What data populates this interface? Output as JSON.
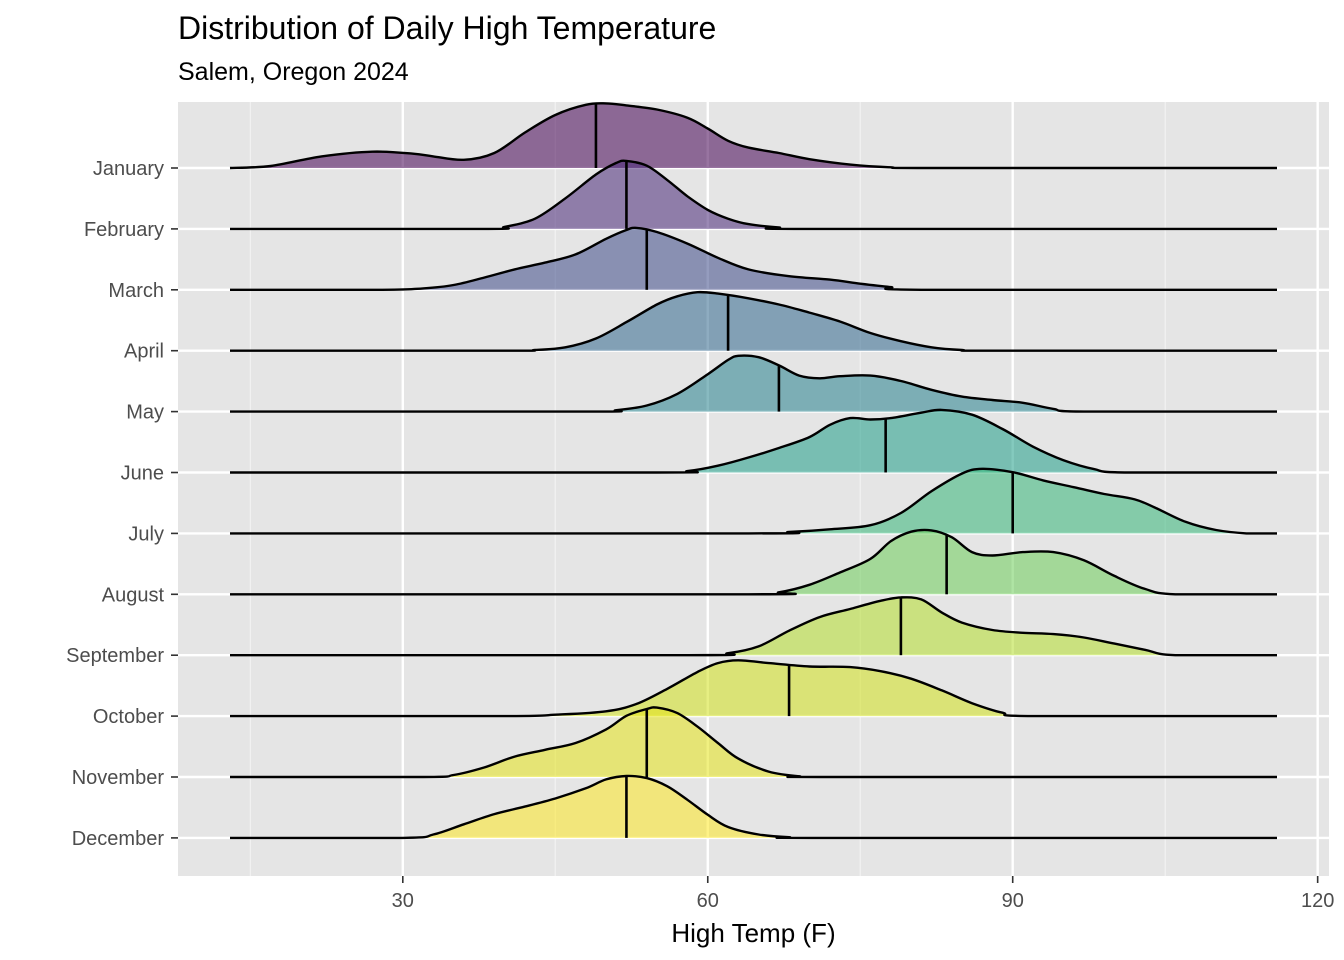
{
  "chart_data": {
    "type": "ridgeline",
    "title": "Distribution of Daily High Temperature",
    "subtitle": "Salem, Oregon 2024",
    "xlabel": "High Temp (F)",
    "ylabel": "",
    "xlim": [
      13,
      116
    ],
    "xticks": [
      30,
      60,
      90,
      120
    ],
    "grid": true,
    "legend": "none",
    "colormap": "viridis",
    "categories": [
      "January",
      "February",
      "March",
      "April",
      "May",
      "June",
      "July",
      "August",
      "September",
      "October",
      "November",
      "December"
    ],
    "series": [
      {
        "name": "January",
        "median": 49,
        "color": "#440154",
        "density": [
          [
            13,
            0
          ],
          [
            17,
            0.03
          ],
          [
            22,
            0.17
          ],
          [
            27,
            0.24
          ],
          [
            31,
            0.21
          ],
          [
            33,
            0.17
          ],
          [
            36,
            0.12
          ],
          [
            39,
            0.22
          ],
          [
            42,
            0.52
          ],
          [
            45,
            0.78
          ],
          [
            48,
            0.93
          ],
          [
            50,
            0.95
          ],
          [
            52,
            0.92
          ],
          [
            55,
            0.86
          ],
          [
            58,
            0.74
          ],
          [
            60,
            0.58
          ],
          [
            62,
            0.4
          ],
          [
            64,
            0.3
          ],
          [
            67,
            0.22
          ],
          [
            70,
            0.13
          ],
          [
            74,
            0.05
          ],
          [
            78,
            0.01
          ],
          [
            82,
            0
          ],
          [
            116,
            0
          ]
        ]
      },
      {
        "name": "February",
        "median": 52,
        "color": "#482878",
        "density": [
          [
            13,
            0
          ],
          [
            38,
            0
          ],
          [
            40,
            0.03
          ],
          [
            43,
            0.15
          ],
          [
            46,
            0.45
          ],
          [
            49,
            0.8
          ],
          [
            51,
            0.97
          ],
          [
            52,
            1.0
          ],
          [
            54,
            0.93
          ],
          [
            56,
            0.72
          ],
          [
            58,
            0.48
          ],
          [
            60,
            0.28
          ],
          [
            62,
            0.15
          ],
          [
            64,
            0.07
          ],
          [
            67,
            0.02
          ],
          [
            70,
            0
          ],
          [
            116,
            0
          ]
        ]
      },
      {
        "name": "March",
        "median": 54,
        "color": "#3E4A89",
        "density": [
          [
            13,
            0
          ],
          [
            28,
            0
          ],
          [
            32,
            0.02
          ],
          [
            35,
            0.07
          ],
          [
            38,
            0.18
          ],
          [
            41,
            0.3
          ],
          [
            44,
            0.4
          ],
          [
            47,
            0.52
          ],
          [
            50,
            0.75
          ],
          [
            52,
            0.88
          ],
          [
            53,
            0.91
          ],
          [
            55,
            0.85
          ],
          [
            58,
            0.68
          ],
          [
            61,
            0.47
          ],
          [
            64,
            0.3
          ],
          [
            68,
            0.2
          ],
          [
            72,
            0.15
          ],
          [
            75,
            0.09
          ],
          [
            78,
            0.04
          ],
          [
            81,
            0
          ],
          [
            116,
            0
          ]
        ]
      },
      {
        "name": "April",
        "median": 62,
        "color": "#31688E",
        "density": [
          [
            13,
            0
          ],
          [
            40,
            0
          ],
          [
            43,
            0.01
          ],
          [
            46,
            0.05
          ],
          [
            49,
            0.18
          ],
          [
            52,
            0.42
          ],
          [
            55,
            0.68
          ],
          [
            57,
            0.8
          ],
          [
            59,
            0.86
          ],
          [
            61,
            0.84
          ],
          [
            64,
            0.77
          ],
          [
            67,
            0.68
          ],
          [
            70,
            0.56
          ],
          [
            73,
            0.43
          ],
          [
            76,
            0.26
          ],
          [
            79,
            0.14
          ],
          [
            82,
            0.05
          ],
          [
            85,
            0.01
          ],
          [
            88,
            0
          ],
          [
            116,
            0
          ]
        ]
      },
      {
        "name": "May",
        "median": 67,
        "color": "#26828E",
        "density": [
          [
            13,
            0
          ],
          [
            48,
            0
          ],
          [
            51,
            0.02
          ],
          [
            54,
            0.09
          ],
          [
            57,
            0.26
          ],
          [
            60,
            0.55
          ],
          [
            62,
            0.76
          ],
          [
            63,
            0.82
          ],
          [
            65,
            0.8
          ],
          [
            67,
            0.68
          ],
          [
            69,
            0.53
          ],
          [
            71,
            0.49
          ],
          [
            73,
            0.52
          ],
          [
            76,
            0.53
          ],
          [
            79,
            0.45
          ],
          [
            82,
            0.32
          ],
          [
            85,
            0.22
          ],
          [
            88,
            0.17
          ],
          [
            91,
            0.13
          ],
          [
            94,
            0.04
          ],
          [
            97,
            0
          ],
          [
            116,
            0
          ]
        ]
      },
      {
        "name": "June",
        "median": 77.5,
        "color": "#1F9E89",
        "density": [
          [
            13,
            0
          ],
          [
            55,
            0
          ],
          [
            58,
            0.02
          ],
          [
            61,
            0.1
          ],
          [
            64,
            0.22
          ],
          [
            67,
            0.36
          ],
          [
            70,
            0.52
          ],
          [
            72,
            0.7
          ],
          [
            74,
            0.8
          ],
          [
            76,
            0.78
          ],
          [
            78,
            0.8
          ],
          [
            81,
            0.88
          ],
          [
            83,
            0.92
          ],
          [
            86,
            0.85
          ],
          [
            89,
            0.64
          ],
          [
            92,
            0.38
          ],
          [
            95,
            0.18
          ],
          [
            98,
            0.05
          ],
          [
            101,
            0
          ],
          [
            116,
            0
          ]
        ]
      },
      {
        "name": "July",
        "median": 90,
        "color": "#35B779",
        "density": [
          [
            13,
            0
          ],
          [
            64,
            0
          ],
          [
            68,
            0.02
          ],
          [
            72,
            0.06
          ],
          [
            76,
            0.12
          ],
          [
            79,
            0.3
          ],
          [
            82,
            0.62
          ],
          [
            85,
            0.88
          ],
          [
            87,
            0.95
          ],
          [
            90,
            0.9
          ],
          [
            93,
            0.78
          ],
          [
            96,
            0.68
          ],
          [
            99,
            0.58
          ],
          [
            102,
            0.5
          ],
          [
            104,
            0.38
          ],
          [
            107,
            0.17
          ],
          [
            110,
            0.05
          ],
          [
            113,
            0
          ],
          [
            116,
            0
          ]
        ]
      },
      {
        "name": "August",
        "median": 83.5,
        "color": "#6DCD59",
        "density": [
          [
            13,
            0
          ],
          [
            64,
            0
          ],
          [
            67,
            0.03
          ],
          [
            70,
            0.14
          ],
          [
            73,
            0.32
          ],
          [
            76,
            0.52
          ],
          [
            78,
            0.78
          ],
          [
            80,
            0.92
          ],
          [
            82,
            0.94
          ],
          [
            84,
            0.84
          ],
          [
            86,
            0.62
          ],
          [
            88,
            0.57
          ],
          [
            91,
            0.62
          ],
          [
            94,
            0.62
          ],
          [
            97,
            0.5
          ],
          [
            100,
            0.27
          ],
          [
            103,
            0.08
          ],
          [
            106,
            0
          ],
          [
            116,
            0
          ]
        ]
      },
      {
        "name": "September",
        "median": 79,
        "color": "#B4DE2C",
        "density": [
          [
            13,
            0
          ],
          [
            58,
            0
          ],
          [
            62,
            0.03
          ],
          [
            65,
            0.13
          ],
          [
            68,
            0.36
          ],
          [
            71,
            0.56
          ],
          [
            74,
            0.68
          ],
          [
            77,
            0.8
          ],
          [
            79,
            0.85
          ],
          [
            81,
            0.82
          ],
          [
            83,
            0.63
          ],
          [
            85,
            0.48
          ],
          [
            88,
            0.37
          ],
          [
            91,
            0.33
          ],
          [
            94,
            0.31
          ],
          [
            97,
            0.26
          ],
          [
            100,
            0.17
          ],
          [
            103,
            0.08
          ],
          [
            106,
            0
          ],
          [
            116,
            0
          ]
        ]
      },
      {
        "name": "October",
        "median": 68,
        "color": "#D2E21B",
        "density": [
          [
            13,
            0
          ],
          [
            40,
            0
          ],
          [
            45,
            0.02
          ],
          [
            50,
            0.07
          ],
          [
            53,
            0.18
          ],
          [
            56,
            0.4
          ],
          [
            59,
            0.65
          ],
          [
            61,
            0.78
          ],
          [
            63,
            0.82
          ],
          [
            66,
            0.78
          ],
          [
            70,
            0.73
          ],
          [
            74,
            0.72
          ],
          [
            77,
            0.66
          ],
          [
            80,
            0.55
          ],
          [
            83,
            0.38
          ],
          [
            86,
            0.19
          ],
          [
            89,
            0.05
          ],
          [
            92,
            0
          ],
          [
            116,
            0
          ]
        ]
      },
      {
        "name": "November",
        "median": 54,
        "color": "#E6E419",
        "density": [
          [
            13,
            0
          ],
          [
            32,
            0
          ],
          [
            35,
            0.03
          ],
          [
            38,
            0.14
          ],
          [
            41,
            0.3
          ],
          [
            44,
            0.4
          ],
          [
            47,
            0.5
          ],
          [
            50,
            0.7
          ],
          [
            52,
            0.9
          ],
          [
            54,
            1.0
          ],
          [
            55,
            1.02
          ],
          [
            57,
            0.94
          ],
          [
            59,
            0.74
          ],
          [
            61,
            0.5
          ],
          [
            63,
            0.27
          ],
          [
            66,
            0.08
          ],
          [
            69,
            0.01
          ],
          [
            72,
            0
          ],
          [
            116,
            0
          ]
        ]
      },
      {
        "name": "December",
        "median": 52,
        "color": "#FDE725",
        "density": [
          [
            13,
            0
          ],
          [
            30,
            0
          ],
          [
            33,
            0.05
          ],
          [
            36,
            0.2
          ],
          [
            39,
            0.35
          ],
          [
            42,
            0.46
          ],
          [
            45,
            0.58
          ],
          [
            48,
            0.73
          ],
          [
            50,
            0.86
          ],
          [
            52,
            0.91
          ],
          [
            54,
            0.88
          ],
          [
            56,
            0.76
          ],
          [
            58,
            0.56
          ],
          [
            60,
            0.34
          ],
          [
            62,
            0.16
          ],
          [
            65,
            0.05
          ],
          [
            68,
            0.01
          ],
          [
            71,
            0
          ],
          [
            116,
            0
          ]
        ]
      }
    ]
  }
}
